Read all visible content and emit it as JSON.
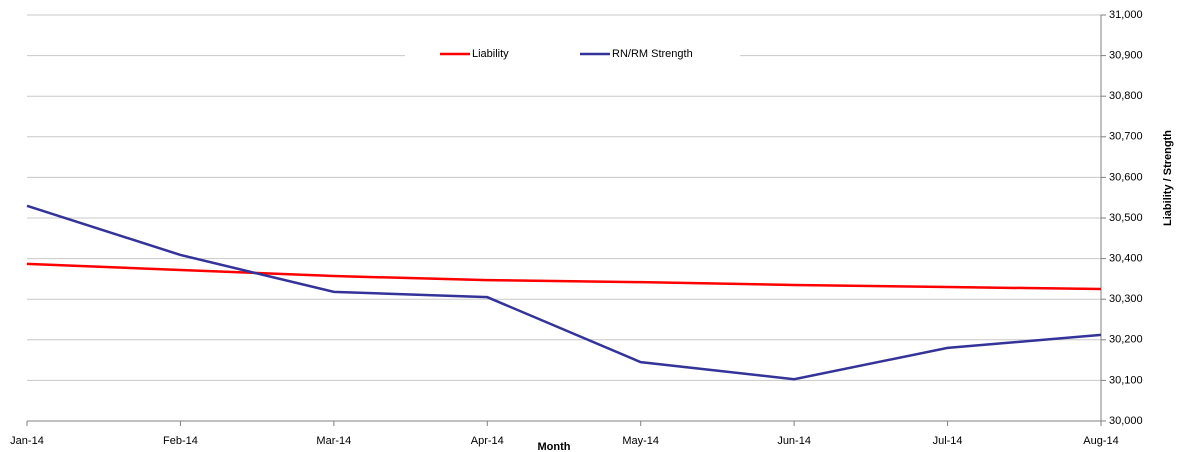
{
  "chart_data": {
    "type": "line",
    "categories": [
      "Jan-14",
      "Feb-14",
      "Mar-14",
      "Apr-14",
      "May-14",
      "Jun-14",
      "Jul-14",
      "Aug-14"
    ],
    "series": [
      {
        "name": "Liability",
        "color": "#ff0000",
        "values": [
          30387,
          30372,
          30357,
          30347,
          30342,
          30335,
          30330,
          30325
        ]
      },
      {
        "name": "RN/RM Strength",
        "color": "#333399",
        "values": [
          30530,
          30409,
          30318,
          30305,
          30145,
          30103,
          30180,
          30212
        ]
      }
    ],
    "xlabel": "Month",
    "ylabel": "Liability / Strength",
    "ylim": [
      30000,
      31000
    ],
    "yticks": [
      {
        "value": 30000,
        "label": "30,000"
      },
      {
        "value": 30100,
        "label": "30,100"
      },
      {
        "value": 30200,
        "label": "30,200"
      },
      {
        "value": 30300,
        "label": "30,300"
      },
      {
        "value": 30400,
        "label": "30,400"
      },
      {
        "value": 30500,
        "label": "30,500"
      },
      {
        "value": 30600,
        "label": "30,600"
      },
      {
        "value": 30700,
        "label": "30,700"
      },
      {
        "value": 30800,
        "label": "30,800"
      },
      {
        "value": 30900,
        "label": "30,900"
      },
      {
        "value": 31000,
        "label": "31,000"
      }
    ],
    "grid": true,
    "legend": "top"
  }
}
